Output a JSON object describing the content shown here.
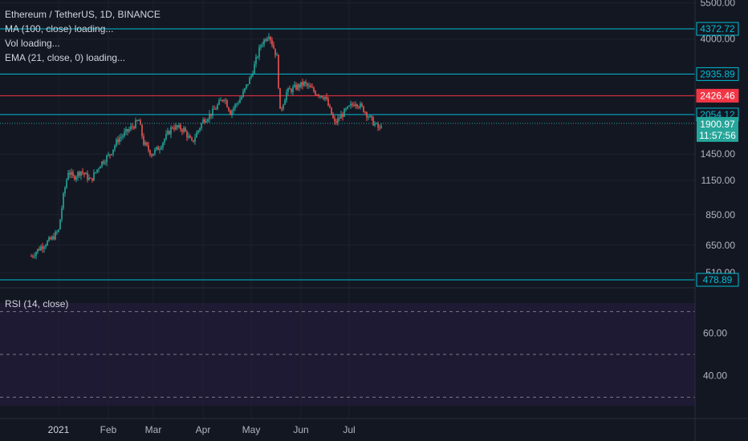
{
  "header": {
    "title": "Ethereum / TetherUS, 1D, BINANCE",
    "indicators": [
      "MA (100, close) loading...",
      "Vol loading...",
      "EMA (21, close, 0) loading..."
    ]
  },
  "rsi_label": "RSI (14, close)",
  "colors": {
    "background": "#131722",
    "up": "#26a69a",
    "down": "#ef5350",
    "hline_cyan": "#00bcd4",
    "hline_red": "#f23645",
    "rsi_band": "#1e1a33"
  },
  "chart_data": [
    {
      "type": "candlestick",
      "title": "Ethereum / TetherUS, 1D, BINANCE",
      "scale": "log",
      "yticks": [
        "5500.00",
        "4000.00",
        "1450.00",
        "1150.00",
        "850.00",
        "650.00",
        "510.00"
      ],
      "xticks": [
        "2021",
        "Feb",
        "Mar",
        "Apr",
        "May",
        "Jun",
        "Jul"
      ],
      "horizontal_lines": [
        {
          "label": "4372.72",
          "color": "#00bcd4"
        },
        {
          "label": "2935.89",
          "color": "#00bcd4"
        },
        {
          "label": "2426.46",
          "color": "#f23645"
        },
        {
          "label": "2054.12",
          "color": "#00bcd4"
        },
        {
          "label": "478.89",
          "color": "#00bcd4"
        }
      ],
      "last_price": {
        "label": "1900.97",
        "countdown": "11:57:56"
      },
      "close_path": [
        [
          "Dec 15",
          590
        ],
        [
          "Dec 21",
          640
        ],
        [
          "Dec 28",
          690
        ],
        [
          "Jan 1",
          740
        ],
        [
          "Jan 4",
          1000
        ],
        [
          "Jan 7",
          1250
        ],
        [
          "Jan 10",
          1180
        ],
        [
          "Jan 15",
          1250
        ],
        [
          "Jan 21",
          1150
        ],
        [
          "Jan 27",
          1330
        ],
        [
          "Feb 2",
          1450
        ],
        [
          "Feb 7",
          1650
        ],
        [
          "Feb 14",
          1800
        ],
        [
          "Feb 20",
          1950
        ],
        [
          "Feb 23",
          1600
        ],
        [
          "Feb 28",
          1450
        ],
        [
          "Mar 5",
          1550
        ],
        [
          "Mar 13",
          1850
        ],
        [
          "Mar 20",
          1800
        ],
        [
          "Mar 25",
          1600
        ],
        [
          "Apr 1",
          1950
        ],
        [
          "Apr 7",
          2100
        ],
        [
          "Apr 14",
          2400
        ],
        [
          "Apr 18",
          2100
        ],
        [
          "Apr 25",
          2400
        ],
        [
          "May 1",
          2900
        ],
        [
          "May 7",
          3800
        ],
        [
          "May 12",
          4200
        ],
        [
          "May 17",
          3400
        ],
        [
          "May 19",
          2100
        ],
        [
          "May 23",
          2500
        ],
        [
          "May 28",
          2600
        ],
        [
          "Jun 3",
          2700
        ],
        [
          "Jun 10",
          2500
        ],
        [
          "Jun 16",
          2400
        ],
        [
          "Jun 22",
          1900
        ],
        [
          "Jun 28",
          2100
        ],
        [
          "Jul 5",
          2300
        ],
        [
          "Jul 10",
          2150
        ],
        [
          "Jul 15",
          1950
        ],
        [
          "Jul 20",
          1800
        ],
        [
          "Jul 21",
          1900
        ]
      ]
    },
    {
      "type": "line",
      "title": "RSI (14, close)",
      "yticks": [
        "60.00",
        "40.00"
      ],
      "ylim": [
        20,
        80
      ],
      "levels": [
        70,
        50,
        30
      ]
    }
  ]
}
